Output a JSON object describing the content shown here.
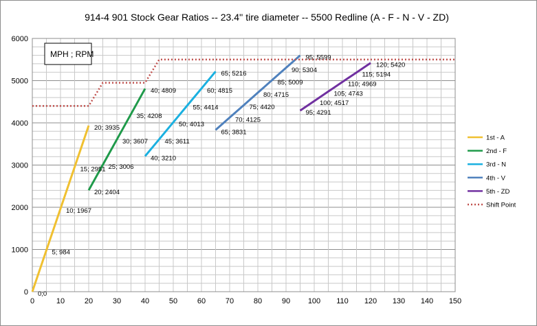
{
  "chart_data": {
    "type": "line",
    "title": "914-4 901 Stock Gear Ratios -- 23.4'' tire diameter -- 5500 Redline   (A - F - N - V - ZD)",
    "annotation": "MPH ; RPM",
    "xlabel": "",
    "ylabel": "",
    "xlim": [
      0,
      150
    ],
    "ylim": [
      0,
      6000
    ],
    "x_ticks": [
      0,
      10,
      20,
      30,
      40,
      50,
      60,
      70,
      80,
      90,
      100,
      110,
      120,
      130,
      140,
      150
    ],
    "y_ticks": [
      0,
      1000,
      2000,
      3000,
      4000,
      5000,
      6000
    ],
    "grid": true,
    "legend_position": "right",
    "series": [
      {
        "name": "1st - A",
        "color": "#f0c030",
        "points": [
          [
            0,
            0
          ],
          [
            5,
            984
          ],
          [
            10,
            1967
          ],
          [
            15,
            2951
          ],
          [
            20,
            3935
          ]
        ],
        "labels": [
          "0;0",
          "5; 984",
          "10; 1967",
          "15; 2951",
          "20; 3935"
        ]
      },
      {
        "name": "2nd - F",
        "color": "#1f9a4a",
        "points": [
          [
            20,
            2404
          ],
          [
            25,
            3006
          ],
          [
            30,
            3607
          ],
          [
            35,
            4208
          ],
          [
            40,
            4809
          ]
        ],
        "labels": [
          "20; 2404",
          "25; 3006",
          "30; 3607",
          "35; 4208",
          "40; 4809"
        ]
      },
      {
        "name": "3rd - N",
        "color": "#1ab0e0",
        "points": [
          [
            40,
            3210
          ],
          [
            45,
            3611
          ],
          [
            50,
            4013
          ],
          [
            55,
            4414
          ],
          [
            60,
            4815
          ],
          [
            65,
            5216
          ]
        ],
        "labels": [
          "40; 3210",
          "45; 3611",
          "50; 4013",
          "55; 4414",
          "60; 4815",
          "65; 5216"
        ]
      },
      {
        "name": "4th - V",
        "color": "#4f81bd",
        "points": [
          [
            65,
            3831
          ],
          [
            70,
            4125
          ],
          [
            75,
            4420
          ],
          [
            80,
            4715
          ],
          [
            85,
            5009
          ],
          [
            90,
            5304
          ],
          [
            95,
            5599
          ]
        ],
        "labels": [
          "65; 3831",
          "70; 4125",
          "75; 4420",
          "80; 4715",
          "85; 5009",
          "90; 5304",
          "95; 5599"
        ]
      },
      {
        "name": "5th - ZD",
        "color": "#7030a0",
        "points": [
          [
            95,
            4291
          ],
          [
            100,
            4517
          ],
          [
            105,
            4743
          ],
          [
            110,
            4969
          ],
          [
            115,
            5194
          ],
          [
            120,
            5420
          ]
        ],
        "labels": [
          "95; 4291",
          "100; 4517",
          "105; 4743",
          "110; 4969",
          "115; 5194",
          "120; 5420"
        ]
      },
      {
        "name": "Shift Point",
        "color": "#c0504d",
        "dashed": true,
        "points": [
          [
            0,
            4400
          ],
          [
            20,
            4400
          ],
          [
            25,
            4950
          ],
          [
            40,
            4950
          ],
          [
            45,
            5500
          ],
          [
            150,
            5500
          ]
        ],
        "labels": []
      }
    ]
  }
}
